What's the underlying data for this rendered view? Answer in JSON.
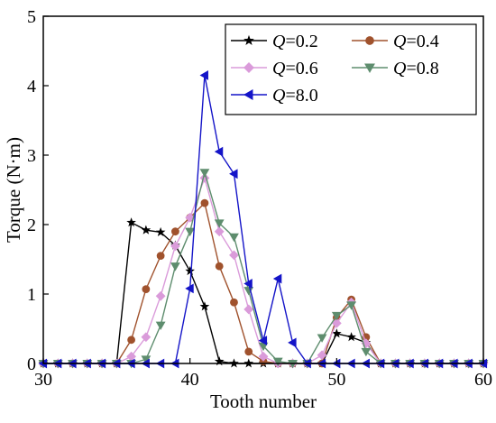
{
  "chart_data": {
    "type": "line",
    "title": "",
    "xlabel": "Tooth number",
    "ylabel": "Torque (N·m)",
    "xlim": [
      30,
      60
    ],
    "ylim": [
      0,
      5
    ],
    "xticks": [
      30,
      40,
      50,
      60
    ],
    "yticks": [
      0,
      1,
      2,
      3,
      4,
      5
    ],
    "grid": false,
    "legend_position": "top-right",
    "series": [
      {
        "name_var": "Q",
        "name_val": "=0.2",
        "color": "#000000",
        "marker": "star",
        "points": [
          [
            30,
            0
          ],
          [
            31,
            0
          ],
          [
            32,
            0
          ],
          [
            33,
            0
          ],
          [
            34,
            0
          ],
          [
            35,
            0
          ],
          [
            36,
            2.03
          ],
          [
            37,
            1.92
          ],
          [
            38,
            1.89
          ],
          [
            39,
            1.7
          ],
          [
            40,
            1.33
          ],
          [
            41,
            0.82
          ],
          [
            42,
            0.03
          ],
          [
            43,
            0
          ],
          [
            44,
            0
          ],
          [
            45,
            0
          ],
          [
            46,
            0
          ],
          [
            47,
            0
          ],
          [
            48,
            0
          ],
          [
            49,
            0
          ],
          [
            50,
            0.43
          ],
          [
            51,
            0.38
          ],
          [
            52,
            0.3
          ],
          [
            53,
            0
          ],
          [
            54,
            0
          ],
          [
            55,
            0
          ],
          [
            56,
            0
          ],
          [
            57,
            0
          ],
          [
            58,
            0
          ],
          [
            59,
            0
          ],
          [
            60,
            0
          ]
        ]
      },
      {
        "name_var": "Q",
        "name_val": "=0.4",
        "color": "#a0522d",
        "marker": "circle",
        "points": [
          [
            30,
            0
          ],
          [
            31,
            0
          ],
          [
            32,
            0
          ],
          [
            33,
            0
          ],
          [
            34,
            0
          ],
          [
            35,
            0
          ],
          [
            36,
            0.34
          ],
          [
            37,
            1.07
          ],
          [
            38,
            1.55
          ],
          [
            39,
            1.9
          ],
          [
            40,
            2.1
          ],
          [
            41,
            2.31
          ],
          [
            42,
            1.4
          ],
          [
            43,
            0.88
          ],
          [
            44,
            0.17
          ],
          [
            45,
            0.03
          ],
          [
            46,
            0
          ],
          [
            47,
            0
          ],
          [
            48,
            0
          ],
          [
            49,
            0
          ],
          [
            50,
            0.66
          ],
          [
            51,
            0.92
          ],
          [
            52,
            0.38
          ],
          [
            53,
            0
          ],
          [
            54,
            0
          ],
          [
            55,
            0
          ],
          [
            56,
            0
          ],
          [
            57,
            0
          ],
          [
            58,
            0
          ],
          [
            59,
            0
          ],
          [
            60,
            0
          ]
        ]
      },
      {
        "name_var": "Q",
        "name_val": "=0.6",
        "color": "#da9bda",
        "marker": "diamond",
        "points": [
          [
            30,
            0
          ],
          [
            31,
            0
          ],
          [
            32,
            0
          ],
          [
            33,
            0
          ],
          [
            34,
            0
          ],
          [
            35,
            0
          ],
          [
            36,
            0.1
          ],
          [
            37,
            0.38
          ],
          [
            38,
            0.97
          ],
          [
            39,
            1.69
          ],
          [
            40,
            2.1
          ],
          [
            41,
            2.67
          ],
          [
            42,
            1.9
          ],
          [
            43,
            1.56
          ],
          [
            44,
            0.78
          ],
          [
            45,
            0.1
          ],
          [
            46,
            0
          ],
          [
            47,
            0
          ],
          [
            48,
            0
          ],
          [
            49,
            0.12
          ],
          [
            50,
            0.58
          ],
          [
            51,
            0.88
          ],
          [
            52,
            0.29
          ],
          [
            53,
            0
          ],
          [
            54,
            0
          ],
          [
            55,
            0
          ],
          [
            56,
            0
          ],
          [
            57,
            0
          ],
          [
            58,
            0
          ],
          [
            59,
            0
          ],
          [
            60,
            0
          ]
        ]
      },
      {
        "name_var": "Q",
        "name_val": "=0.8",
        "color": "#5e8d6e",
        "marker": "triangle-down",
        "points": [
          [
            30,
            0
          ],
          [
            31,
            0
          ],
          [
            32,
            0
          ],
          [
            33,
            0
          ],
          [
            34,
            0
          ],
          [
            35,
            0
          ],
          [
            36,
            0
          ],
          [
            37,
            0.06
          ],
          [
            38,
            0.55
          ],
          [
            39,
            1.4
          ],
          [
            40,
            1.9
          ],
          [
            41,
            2.75
          ],
          [
            42,
            2.02
          ],
          [
            43,
            1.82
          ],
          [
            44,
            1.05
          ],
          [
            45,
            0.25
          ],
          [
            46,
            0.03
          ],
          [
            47,
            0
          ],
          [
            48,
            0
          ],
          [
            49,
            0.37
          ],
          [
            50,
            0.69
          ],
          [
            51,
            0.84
          ],
          [
            52,
            0.17
          ],
          [
            53,
            0
          ],
          [
            54,
            0
          ],
          [
            55,
            0
          ],
          [
            56,
            0
          ],
          [
            57,
            0
          ],
          [
            58,
            0
          ],
          [
            59,
            0
          ],
          [
            60,
            0
          ]
        ]
      },
      {
        "name_var": "Q",
        "name_val": "=8.0",
        "color": "#1414c8",
        "marker": "triangle-left",
        "points": [
          [
            30,
            0
          ],
          [
            31,
            0
          ],
          [
            32,
            0
          ],
          [
            33,
            0
          ],
          [
            34,
            0
          ],
          [
            35,
            0
          ],
          [
            36,
            0
          ],
          [
            37,
            0
          ],
          [
            38,
            0
          ],
          [
            39,
            0
          ],
          [
            40,
            1.08
          ],
          [
            41,
            4.15
          ],
          [
            42,
            3.05
          ],
          [
            43,
            2.73
          ],
          [
            44,
            1.15
          ],
          [
            45,
            0.33
          ],
          [
            46,
            1.22
          ],
          [
            47,
            0.3
          ],
          [
            48,
            0
          ],
          [
            49,
            0
          ],
          [
            50,
            0
          ],
          [
            51,
            0
          ],
          [
            52,
            0
          ],
          [
            53,
            0
          ],
          [
            54,
            0
          ],
          [
            55,
            0
          ],
          [
            56,
            0
          ],
          [
            57,
            0
          ],
          [
            58,
            0
          ],
          [
            59,
            0
          ],
          [
            60,
            0
          ]
        ]
      }
    ]
  }
}
